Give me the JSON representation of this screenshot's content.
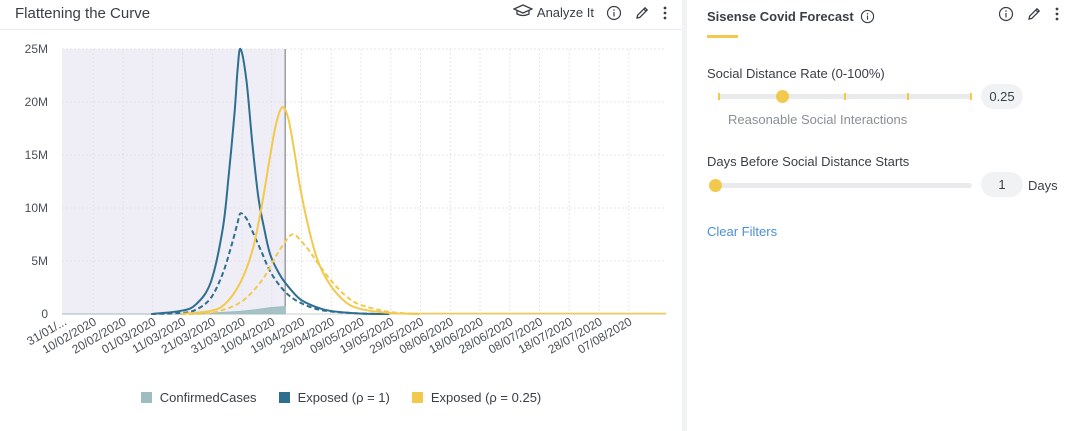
{
  "chart_widget": {
    "title": "Flattening the Curve",
    "analyze_label": "Analyze It",
    "icons": [
      "analyze-icon",
      "info-icon",
      "pencil-icon",
      "more-vert-icon"
    ]
  },
  "filter_widget": {
    "title": "Sisense Covid Forecast",
    "icons": [
      "info-icon",
      "pencil-icon",
      "more-vert-icon"
    ],
    "accent_color": "#f2c94c",
    "controls": [
      {
        "label": "Social Distance Rate (0-100%)",
        "value": "0.25",
        "fraction": 0.25,
        "sub_label": "Reasonable Social Interactions"
      },
      {
        "label": "Days Before Social Distance Starts",
        "value": "1",
        "unit": "Days",
        "fraction": 0.0
      }
    ],
    "clear_label": "Clear Filters"
  },
  "chart_data": {
    "type": "line",
    "x_tick_labels": [
      "31/01/...",
      "10/02/2020",
      "20/02/2020",
      "01/03/2020",
      "11/03/2020",
      "21/03/2020",
      "31/03/2020",
      "10/04/2020",
      "19/04/2020",
      "29/04/2020",
      "09/05/2020",
      "19/05/2020",
      "29/05/2020",
      "08/06/2020",
      "18/06/2020",
      "28/06/2020",
      "08/07/2020",
      "18/07/2020",
      "28/07/2020",
      "07/08/2020"
    ],
    "y_tick_labels": [
      "0",
      "5M",
      "10M",
      "15M",
      "20M",
      "25M"
    ],
    "ylim": [
      0,
      25000000
    ],
    "x_range_days_from_first_tick": [
      0,
      203
    ],
    "shaded_region_days": [
      0,
      75
    ],
    "grid": true,
    "legend_position": "bottom",
    "series": [
      {
        "name": "ConfirmedCases",
        "color": "#9dbdc0",
        "style": "area",
        "days": [
          0,
          40,
          50,
          60,
          65,
          70,
          75
        ],
        "values": [
          0,
          10000,
          80000,
          250000,
          400000,
          600000,
          700000
        ]
      },
      {
        "name": "Exposed (ρ = 1)",
        "color": "#2e6e8e",
        "style": "solid",
        "days": [
          30,
          40,
          45,
          50,
          54,
          56,
          58,
          59,
          60,
          62,
          64,
          66,
          68,
          70,
          73,
          76,
          80,
          85,
          90,
          100,
          110
        ],
        "values": [
          0,
          300000,
          900000,
          3000000,
          8000000,
          13000000,
          19000000,
          23000000,
          25000000,
          22000000,
          16000000,
          11000000,
          8000000,
          5600000,
          3800000,
          2600000,
          1400000,
          700000,
          300000,
          50000,
          0
        ]
      },
      {
        "name": "Exposed (ρ = 1)",
        "color": "#2e6e8e",
        "style": "dashed",
        "days": [
          30,
          40,
          45,
          50,
          54,
          57,
          59,
          60,
          62,
          64,
          67,
          70,
          74,
          78,
          84,
          90,
          100,
          110
        ],
        "values": [
          0,
          100000,
          400000,
          1500000,
          3800000,
          6500000,
          8600000,
          9500000,
          9000000,
          7800000,
          5900000,
          4000000,
          2400000,
          1400000,
          600000,
          250000,
          50000,
          0
        ]
      },
      {
        "name": "Exposed (ρ = 0.25)",
        "color": "#f2c94c",
        "style": "solid",
        "days": [
          40,
          50,
          55,
          60,
          64,
          67,
          70,
          72,
          74,
          76,
          78,
          80,
          83,
          86,
          90,
          95,
          100,
          110,
          120
        ],
        "values": [
          0,
          300000,
          1000000,
          3000000,
          6000000,
          10000000,
          15000000,
          18000000,
          19500000,
          18500000,
          15500000,
          12000000,
          8000000,
          5000000,
          2800000,
          1200000,
          500000,
          100000,
          0
        ]
      },
      {
        "name": "Exposed (ρ = 0.25)",
        "color": "#f2c94c",
        "style": "dashed",
        "days": [
          40,
          50,
          58,
          63,
          68,
          72,
          76,
          78,
          80,
          83,
          86,
          90,
          95,
          100,
          110,
          120
        ],
        "values": [
          0,
          100000,
          800000,
          1800000,
          3500000,
          5500000,
          7200000,
          7500000,
          7000000,
          6000000,
          4800000,
          3300000,
          1800000,
          900000,
          200000,
          0
        ]
      }
    ]
  }
}
